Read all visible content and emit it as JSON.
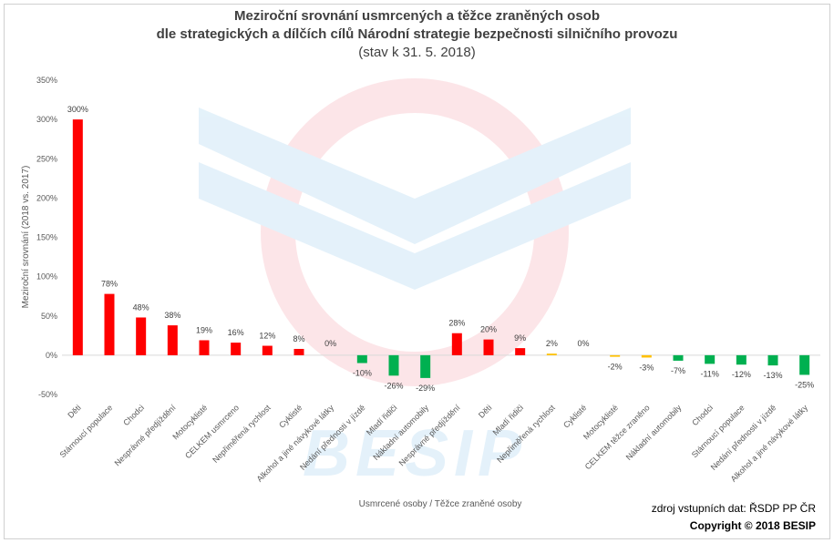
{
  "header": {
    "title_line1": "Meziroční srovnání usmrcených a těžce zraněných osob",
    "title_line2": "dle strategických a dílčích cílů Národní strategie bezpečnosti silničního provozu",
    "title_line3": "(stav k 31. 5. 2018)"
  },
  "footer": {
    "source": "zdroj vstupních dat: ŘSDP PP ČR",
    "copyright": "Copyright © 2018 BESIP"
  },
  "watermark": {
    "text": "BESIP"
  },
  "colors": {
    "positive": "#ff0000",
    "negative": "#00b050",
    "small_positive": "#ffc000",
    "small_negative": "#ffc000"
  },
  "chart_data": {
    "type": "bar",
    "xlabel": "Usmrcené osoby / Těžce zraněné osoby",
    "ylabel": "Meziroční srovnání (2018 vs. 2017)",
    "ylim": [
      -50,
      350
    ],
    "yticks": [
      -50,
      0,
      50,
      100,
      150,
      200,
      250,
      300,
      350
    ],
    "ytick_labels": [
      "-50%",
      "0%",
      "50%",
      "100%",
      "150%",
      "200%",
      "250%",
      "300%",
      "350%"
    ],
    "grid": false,
    "categories": [
      "Děti",
      "Stárnoucí populace",
      "Chodci",
      "Nesprávné předjíždění",
      "Motocyklisté",
      "CELKEM usmrceno",
      "Nepřiměřená rychlost",
      "Cyklisté",
      "Alkohol a jiné návykové látky",
      "Nedání přednosti v jízdě",
      "Mladí řidiči",
      "Nákladní automobily",
      "Nesprávné předjíždění",
      "Děti",
      "Mladí řidiči",
      "Nepřiměřená rychlost",
      "Cyklisté",
      "Motocyklisté",
      "CELKEM těžce zraněno",
      "Nákladní automobily",
      "Chodci",
      "Stárnoucí populace",
      "Nedání přednosti v jízdě",
      "Alkohol a jiné návykové látky"
    ],
    "values": [
      300,
      78,
      48,
      38,
      19,
      16,
      12,
      8,
      0,
      -10,
      -26,
      -29,
      28,
      20,
      9,
      2,
      0,
      -2,
      -3,
      -7,
      -11,
      -12,
      -13,
      -25
    ],
    "labels": [
      "300%",
      "78%",
      "48%",
      "38%",
      "19%",
      "16%",
      "12%",
      "8%",
      "0%",
      "-10%",
      "-26%",
      "-29%",
      "28%",
      "20%",
      "9%",
      "2%",
      "0%",
      "-2%",
      "-3%",
      "-7%",
      "-11%",
      "-12%",
      "-13%",
      "-25%"
    ],
    "groups": [
      "Usmrcené osoby",
      "Těžce zraněné osoby"
    ]
  }
}
